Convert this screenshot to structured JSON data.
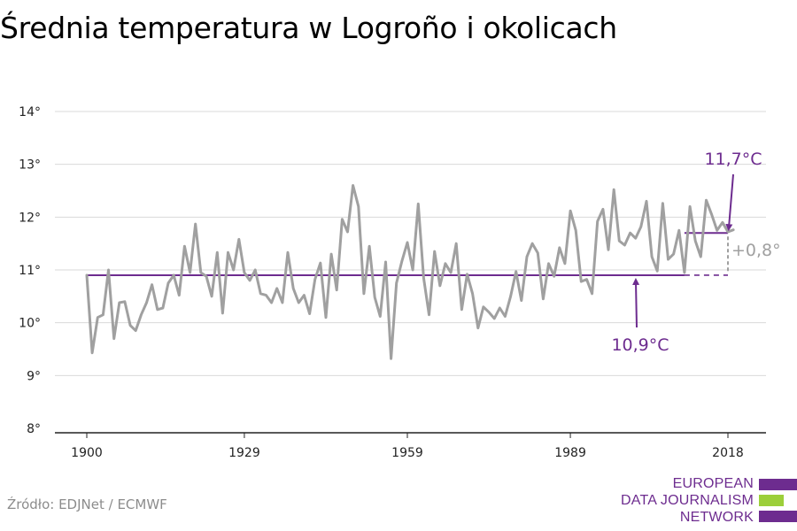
{
  "title": "Średnia temperatura w Logroño i okolicach",
  "source": "Źródło: EDJNet / ECMWF",
  "logo": {
    "line1": "EUROPEAN",
    "line2": "DATA JOURNALISM",
    "line3": "NETWORK",
    "colors": {
      "purple": "#6d2c8f",
      "green": "#9ccf3a"
    }
  },
  "colors": {
    "series": "#a0a0a0",
    "baseline": "#6d2c8f",
    "annotation_delta": "#a0a0a0",
    "grid": "#d9d9d9",
    "axis": "#222222"
  },
  "chart_data": {
    "type": "line",
    "title": "Średnia temperatura w Logroño i okolicach",
    "xlabel": "",
    "ylabel": "",
    "xlim": [
      1900,
      2018
    ],
    "ylim": [
      8,
      14
    ],
    "x_ticks": [
      1900,
      1929,
      1959,
      1989,
      2018
    ],
    "y_ticks": [
      {
        "value": 8,
        "label": "8°"
      },
      {
        "value": 9,
        "label": "9°"
      },
      {
        "value": 10,
        "label": "10°"
      },
      {
        "value": 11,
        "label": "11°"
      },
      {
        "value": 12,
        "label": "12°"
      },
      {
        "value": 13,
        "label": "13°"
      },
      {
        "value": 14,
        "label": "14°"
      }
    ],
    "grid": true,
    "x": [
      1900,
      1901,
      1902,
      1903,
      1904,
      1905,
      1906,
      1907,
      1908,
      1909,
      1910,
      1911,
      1912,
      1913,
      1914,
      1915,
      1916,
      1917,
      1918,
      1919,
      1920,
      1921,
      1922,
      1923,
      1924,
      1925,
      1926,
      1927,
      1928,
      1929,
      1930,
      1931,
      1932,
      1933,
      1934,
      1935,
      1936,
      1937,
      1938,
      1939,
      1940,
      1941,
      1942,
      1943,
      1944,
      1945,
      1946,
      1947,
      1948,
      1949,
      1950,
      1951,
      1952,
      1953,
      1954,
      1955,
      1956,
      1957,
      1958,
      1959,
      1960,
      1961,
      1962,
      1963,
      1964,
      1965,
      1966,
      1967,
      1968,
      1969,
      1970,
      1971,
      1972,
      1973,
      1974,
      1975,
      1976,
      1977,
      1978,
      1979,
      1980,
      1981,
      1982,
      1983,
      1984,
      1985,
      1986,
      1987,
      1988,
      1989,
      1990,
      1991,
      1992,
      1993,
      1994,
      1995,
      1996,
      1997,
      1998,
      1999,
      2000,
      2001,
      2002,
      2003,
      2004,
      2005,
      2006,
      2007,
      2008,
      2009,
      2010,
      2011,
      2012,
      2013,
      2014,
      2015,
      2016,
      2017,
      2018,
      2019
    ],
    "series": [
      {
        "values": [
          10.9,
          9.43,
          10.1,
          10.15,
          11.0,
          9.7,
          10.38,
          10.4,
          9.95,
          9.85,
          10.15,
          10.38,
          10.72,
          10.25,
          10.28,
          10.75,
          10.9,
          10.52,
          11.45,
          10.95,
          11.87,
          10.95,
          10.88,
          10.5,
          11.33,
          10.18,
          11.33,
          11.0,
          11.58,
          10.95,
          10.8,
          11.0,
          10.55,
          10.52,
          10.38,
          10.65,
          10.38,
          11.33,
          10.65,
          10.38,
          10.52,
          10.17,
          10.82,
          11.13,
          10.1,
          11.3,
          10.62,
          11.96,
          11.72,
          12.6,
          12.2,
          10.55,
          11.45,
          10.48,
          10.12,
          11.15,
          9.32,
          10.75,
          11.17,
          11.52,
          11.0,
          12.25,
          10.85,
          10.15,
          11.35,
          10.7,
          11.12,
          10.95,
          11.5,
          10.25,
          10.92,
          10.55,
          9.9,
          10.3,
          10.2,
          10.08,
          10.28,
          10.12,
          10.5,
          10.97,
          10.42,
          11.25,
          11.5,
          11.32,
          10.45,
          11.12,
          10.88,
          11.42,
          11.12,
          12.12,
          11.75,
          10.78,
          10.82,
          10.55,
          11.92,
          12.15,
          11.38,
          12.52,
          11.55,
          11.47,
          11.7,
          11.6,
          11.82,
          12.3,
          11.25,
          10.98,
          12.26,
          11.2,
          11.3,
          11.75,
          10.95,
          12.2,
          11.55,
          11.25,
          12.32,
          12.05,
          11.75,
          11.9,
          11.72,
          11.76
        ]
      }
    ],
    "reference_lines": [
      {
        "value": 10.9,
        "from": 1900,
        "to": 2018,
        "solid_to": 2010,
        "label": "10,9°C"
      },
      {
        "value": 11.7,
        "from": 2010,
        "to": 2018,
        "label": "11,7°C"
      }
    ],
    "delta_label": "+0,8°"
  }
}
